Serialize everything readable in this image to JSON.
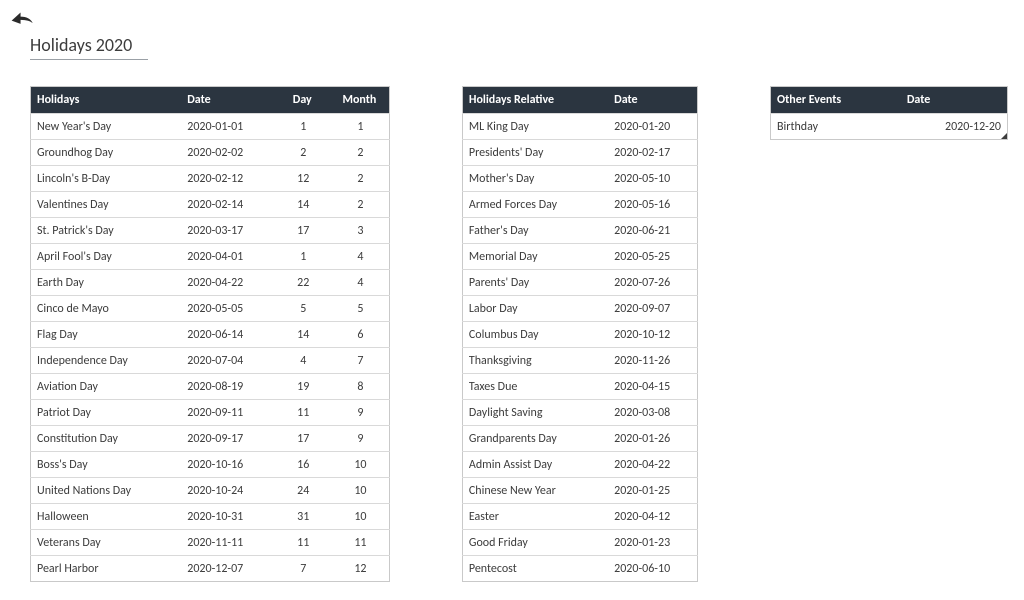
{
  "page_title": "Holidays  2020",
  "colors": {
    "header_bg": "#2b3540",
    "header_text": "#ffffff",
    "body_bg": "#ffffff",
    "text": "#3c3c3c",
    "border": "#d9d9d9",
    "outer_border": "#c9c9c9",
    "title_underline": "#9aa0a6"
  },
  "table_holidays": {
    "columns": [
      "Holidays",
      "Date",
      "Day",
      "Month"
    ],
    "rows": [
      [
        "New Year's Day",
        "2020-01-01",
        "1",
        "1"
      ],
      [
        "Groundhog Day",
        "2020-02-02",
        "2",
        "2"
      ],
      [
        "Lincoln's B-Day",
        "2020-02-12",
        "12",
        "2"
      ],
      [
        "Valentines Day",
        "2020-02-14",
        "14",
        "2"
      ],
      [
        "St. Patrick's Day",
        "2020-03-17",
        "17",
        "3"
      ],
      [
        "April Fool's Day",
        "2020-04-01",
        "1",
        "4"
      ],
      [
        "Earth Day",
        "2020-04-22",
        "22",
        "4"
      ],
      [
        "Cinco de Mayo",
        "2020-05-05",
        "5",
        "5"
      ],
      [
        "Flag Day",
        "2020-06-14",
        "14",
        "6"
      ],
      [
        "Independence Day",
        "2020-07-04",
        "4",
        "7"
      ],
      [
        "Aviation Day",
        "2020-08-19",
        "19",
        "8"
      ],
      [
        "Patriot Day",
        "2020-09-11",
        "11",
        "9"
      ],
      [
        "Constitution Day",
        "2020-09-17",
        "17",
        "9"
      ],
      [
        "Boss's Day",
        "2020-10-16",
        "16",
        "10"
      ],
      [
        "United Nations Day",
        "2020-10-24",
        "24",
        "10"
      ],
      [
        "Halloween",
        "2020-10-31",
        "31",
        "10"
      ],
      [
        "Veterans Day",
        "2020-11-11",
        "11",
        "11"
      ],
      [
        "Pearl Harbor",
        "2020-12-07",
        "7",
        "12"
      ]
    ]
  },
  "table_relative": {
    "columns": [
      "Holidays Relative",
      "Date"
    ],
    "rows": [
      [
        "ML King Day",
        "2020-01-20"
      ],
      [
        "Presidents' Day",
        "2020-02-17"
      ],
      [
        "Mother's Day",
        "2020-05-10"
      ],
      [
        "Armed Forces Day",
        "2020-05-16"
      ],
      [
        "Father's Day",
        "2020-06-21"
      ],
      [
        "Memorial Day",
        "2020-05-25"
      ],
      [
        "Parents' Day",
        "2020-07-26"
      ],
      [
        "Labor Day",
        "2020-09-07"
      ],
      [
        "Columbus Day",
        "2020-10-12"
      ],
      [
        "Thanksgiving",
        "2020-11-26"
      ],
      [
        "Taxes Due",
        "2020-04-15"
      ],
      [
        "Daylight Saving",
        "2020-03-08"
      ],
      [
        "Grandparents Day",
        "2020-01-26"
      ],
      [
        "Admin Assist Day",
        "2020-04-22"
      ],
      [
        "Chinese New  Year",
        "2020-01-25"
      ],
      [
        "Easter",
        "2020-04-12"
      ],
      [
        "Good Friday",
        "2020-01-23"
      ],
      [
        "Pentecost",
        "2020-06-10"
      ]
    ]
  },
  "table_events": {
    "columns": [
      "Other Events",
      "Date"
    ],
    "rows": [
      [
        "Birthday",
        "2020-12-20"
      ]
    ]
  }
}
